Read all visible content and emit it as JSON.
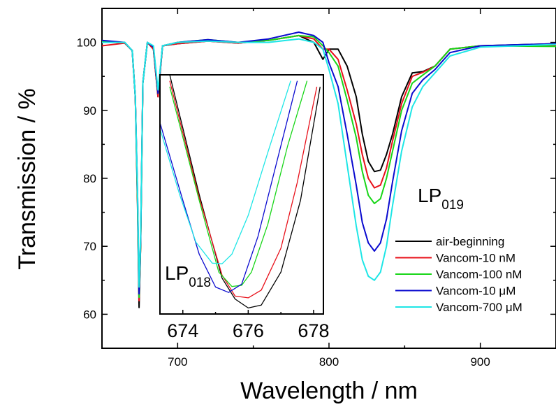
{
  "chart_data": [
    {
      "type": "line",
      "title": "",
      "xlabel": "Wavelength / nm",
      "ylabel": "Transmission / %",
      "xlim": [
        650,
        950
      ],
      "ylim": [
        55,
        105
      ],
      "x_ticks": [
        {
          "value": 700,
          "label": "700"
        },
        {
          "value": 800,
          "label": "800"
        },
        {
          "value": 900,
          "label": "900"
        }
      ],
      "y_ticks": [
        {
          "value": 60,
          "label": "60"
        },
        {
          "value": 70,
          "label": "70"
        },
        {
          "value": 80,
          "label": "80"
        },
        {
          "value": 90,
          "label": "90"
        },
        {
          "value": 100,
          "label": "100"
        }
      ],
      "legend_position": "bottom-right",
      "annotation": {
        "main": "LP",
        "sub": "019"
      },
      "series": [
        {
          "name": "air-beginning",
          "color": "#000000",
          "x": [
            650,
            665,
            670,
            672,
            673.5,
            674.5,
            675.5,
            677,
            680,
            684,
            687,
            690,
            700,
            720,
            740,
            760,
            780,
            790,
            796,
            800,
            806,
            812,
            818,
            822,
            826,
            830,
            834,
            838,
            842,
            848,
            855,
            862,
            870,
            880,
            900,
            950
          ],
          "y": [
            100.2,
            99.9,
            98.8,
            92,
            76,
            61,
            70,
            94,
            100,
            99,
            92,
            99.5,
            99.8,
            100.2,
            99.9,
            100.3,
            101,
            100,
            97.5,
            99,
            99,
            96.5,
            92,
            86.5,
            82.5,
            81,
            81.2,
            83.5,
            86.5,
            92,
            95.5,
            95.7,
            96.5,
            99,
            99.5,
            99.8
          ]
        },
        {
          "name": "Vancom-10 nM",
          "color": "#e8101a",
          "x": [
            650,
            665,
            670,
            672,
            673.5,
            674.5,
            675.5,
            677,
            680,
            684,
            687,
            690,
            700,
            720,
            740,
            760,
            780,
            790,
            796,
            800,
            806,
            812,
            818,
            822,
            826,
            830,
            834,
            838,
            842,
            848,
            855,
            862,
            870,
            880,
            900,
            950
          ],
          "y": [
            99.5,
            99.9,
            98.8,
            92,
            77,
            62,
            70,
            94,
            100,
            99,
            92,
            99.5,
            99.8,
            100.2,
            99.9,
            100.3,
            101,
            100.5,
            99,
            99,
            97.5,
            93,
            88,
            83.5,
            80,
            78.6,
            79,
            81.5,
            85.5,
            91,
            95,
            95.6,
            96.5,
            99,
            99.5,
            99.6
          ]
        },
        {
          "name": "Vancom-100 nM",
          "color": "#18d618",
          "x": [
            650,
            665,
            670,
            672,
            673.5,
            674.5,
            675.5,
            677,
            680,
            684,
            687,
            690,
            700,
            720,
            740,
            760,
            780,
            790,
            796,
            800,
            806,
            812,
            818,
            822,
            826,
            830,
            834,
            838,
            842,
            848,
            855,
            862,
            870,
            880,
            900,
            950
          ],
          "y": [
            100.1,
            100,
            98.8,
            92,
            77,
            62.5,
            70,
            94,
            100,
            99.3,
            92.5,
            99.5,
            100,
            100.4,
            100,
            100.3,
            101,
            100.8,
            99.5,
            98.5,
            96.5,
            91.5,
            86,
            81,
            77.5,
            76.3,
            77,
            80,
            84,
            90,
            94,
            95.2,
            96.5,
            99,
            99.5,
            99.4
          ]
        },
        {
          "name": "Vancom-10 μM",
          "color": "#0a0acf",
          "x": [
            650,
            665,
            670,
            672,
            673.5,
            674.5,
            675.5,
            677,
            680,
            684,
            687,
            690,
            700,
            720,
            740,
            760,
            780,
            790,
            796,
            800,
            806,
            812,
            818,
            822,
            826,
            830,
            834,
            838,
            842,
            848,
            855,
            862,
            870,
            880,
            900,
            950
          ],
          "y": [
            100.3,
            100,
            98.8,
            92,
            78,
            63,
            70.5,
            94,
            100,
            99.3,
            92.5,
            99.5,
            100,
            100.4,
            100,
            100.5,
            101.5,
            101,
            100,
            97,
            93.5,
            86.5,
            79,
            73.5,
            70.5,
            69.3,
            70.5,
            74,
            79.5,
            87,
            92.5,
            94.5,
            96,
            98.5,
            99.5,
            99.8
          ]
        },
        {
          "name": "Vancom-700 μM",
          "color": "#1ee6e6",
          "x": [
            650,
            665,
            670,
            672,
            673.5,
            674.5,
            675.5,
            677,
            680,
            684,
            687,
            690,
            700,
            720,
            740,
            760,
            780,
            790,
            796,
            800,
            806,
            812,
            818,
            822,
            826,
            830,
            834,
            838,
            842,
            848,
            855,
            862,
            870,
            880,
            900,
            950
          ],
          "y": [
            100,
            100,
            98.8,
            92,
            78,
            64,
            71,
            94,
            100,
            99.5,
            93,
            99.5,
            100,
            100.2,
            100,
            100,
            100.5,
            100,
            99,
            96,
            91,
            82,
            73,
            68,
            65.6,
            65,
            66.2,
            70,
            76,
            84,
            90.5,
            93.5,
            95.5,
            98,
            99.3,
            99.7
          ]
        }
      ]
    },
    {
      "type": "line",
      "role": "inset",
      "title": "",
      "xlabel": "",
      "ylabel": "",
      "xlim": [
        673.3,
        678.3
      ],
      "ylim": [
        60,
        100
      ],
      "x_ticks": [
        {
          "value": 674,
          "label": "674"
        },
        {
          "value": 676,
          "label": "676"
        },
        {
          "value": 678,
          "label": "678"
        }
      ],
      "annotation": {
        "main": "LP",
        "sub": "018"
      },
      "series": [
        {
          "name": "air-beginning",
          "color": "#000000",
          "x": [
            673.6,
            674.5,
            675.2,
            675.6,
            676,
            676.4,
            677,
            677.6,
            678.2
          ],
          "y": [
            100,
            80,
            66,
            62.5,
            61,
            61.5,
            67,
            79,
            98
          ]
        },
        {
          "name": "Vancom-10 nM",
          "color": "#e8101a",
          "x": [
            673.6,
            674.5,
            675.2,
            675.6,
            676,
            676.4,
            677,
            677.5,
            678.1
          ],
          "y": [
            99,
            79.5,
            66.5,
            63,
            62.7,
            64,
            71,
            82,
            98
          ]
        },
        {
          "name": "Vancom-100 nM",
          "color": "#18d618",
          "x": [
            673.6,
            674.5,
            675.1,
            675.5,
            675.8,
            676.1,
            676.6,
            677.2,
            677.8
          ],
          "y": [
            98,
            79,
            67,
            64.6,
            64.8,
            67,
            75,
            88,
            99
          ]
        },
        {
          "name": "Vancom-10 μM",
          "color": "#0a0acf",
          "x": [
            673.3,
            674,
            674.5,
            675,
            675.4,
            675.8,
            676.3,
            676.9,
            677.5
          ],
          "y": [
            92,
            79,
            70,
            64.5,
            63.6,
            65,
            73,
            86,
            99
          ]
        },
        {
          "name": "Vancom-700 μM",
          "color": "#1ee6e6",
          "x": [
            673.3,
            673.9,
            674.4,
            674.9,
            675.2,
            675.5,
            676,
            676.6,
            677.3
          ],
          "y": [
            91,
            80,
            72,
            68.5,
            68.4,
            70,
            76.5,
            87,
            99
          ]
        }
      ]
    }
  ]
}
